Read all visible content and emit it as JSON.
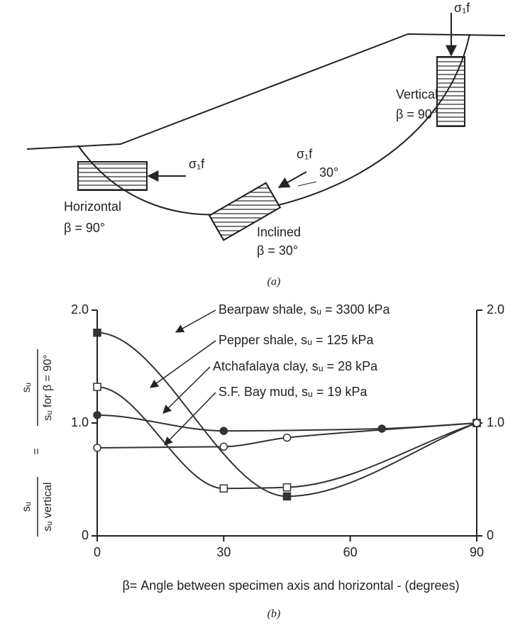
{
  "diagram": {
    "labels": {
      "sigma_vertical": "σ₁f",
      "vertical": "Vertical",
      "vertical_beta": "β = 90°",
      "sigma_horizontal": "σ₁f",
      "horizontal": "Horizontal",
      "horizontal_beta": "β = 90°",
      "sigma_inclined": "σ₁f",
      "inclined_angle": "30°",
      "inclined": "Inclined",
      "inclined_beta": "β = 30°"
    },
    "caption": "(a)"
  },
  "chart_data": {
    "type": "line",
    "caption": "(b)",
    "xlabel": "β= Angle between specimen axis and horizontal - (degrees)",
    "ylabel": [
      "sᵤ",
      "sᵤ vertical",
      "=",
      "sᵤ",
      "sᵤ for β = 90°"
    ],
    "xlim": [
      0,
      90
    ],
    "xticks": [
      0,
      30,
      60,
      90
    ],
    "ylim": [
      0,
      2
    ],
    "yticks": [
      0,
      {
        "value": 1,
        "label": "1.0"
      },
      {
        "value": 2,
        "label": "2.0"
      }
    ],
    "y2lim": [
      0,
      2
    ],
    "y2ticks": [
      0,
      {
        "value": 1,
        "label": "1.0"
      },
      {
        "value": 2,
        "label": "2.0"
      }
    ],
    "series": [
      {
        "name": "Bearpaw shale, sᵤ = 3300 kPa",
        "color": "#333333",
        "marker": "filled-square",
        "x": [
          0,
          45,
          90
        ],
        "values": [
          1.8,
          0.35,
          1.0
        ]
      },
      {
        "name": "Pepper shale, sᵤ = 125 kPa",
        "color": "#333333",
        "marker": "open-square",
        "x": [
          0,
          30,
          45,
          90
        ],
        "values": [
          1.32,
          0.42,
          0.43,
          1.0
        ]
      },
      {
        "name": "Atchafalaya clay, sᵤ = 28 kPa",
        "color": "#333333",
        "marker": "filled-circle",
        "x": [
          0,
          30,
          67.5,
          90
        ],
        "values": [
          1.07,
          0.93,
          0.95,
          1.0
        ]
      },
      {
        "name": "S.F. Bay mud, sᵤ = 19 kPa",
        "color": "#333333",
        "marker": "open-circle",
        "x": [
          0,
          30,
          45,
          90
        ],
        "values": [
          0.78,
          0.79,
          0.87,
          1.0
        ]
      }
    ]
  }
}
